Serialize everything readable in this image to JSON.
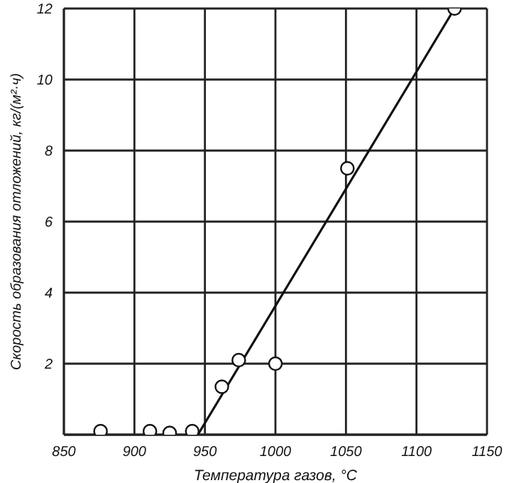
{
  "chart_data": {
    "type": "scatter",
    "xlabel": "Температура газов, °C",
    "ylabel": "Скорость образования отложений, кг/(м²·ч)",
    "xlim": [
      850,
      1150
    ],
    "xticks": [
      850,
      900,
      950,
      1000,
      1050,
      1100,
      1150
    ],
    "ylim": [
      0,
      12
    ],
    "yticks": [
      {
        "value": 0,
        "label": null
      },
      2,
      4,
      6,
      8,
      10,
      12
    ],
    "grid": true,
    "legend": false,
    "series": [
      {
        "color": "#111111",
        "marker": "circle",
        "x": [
          876,
          911,
          925,
          941,
          962,
          974,
          1000,
          1051,
          1127
        ],
        "values": [
          0.1,
          0.1,
          0.05,
          0.1,
          1.35,
          2.1,
          2.0,
          7.5,
          12
        ]
      },
      {
        "type": "line",
        "color": "#111111",
        "marker": "none",
        "line_style": "solid",
        "x": [
          945,
          1127
        ],
        "values": [
          0,
          12
        ]
      }
    ]
  }
}
